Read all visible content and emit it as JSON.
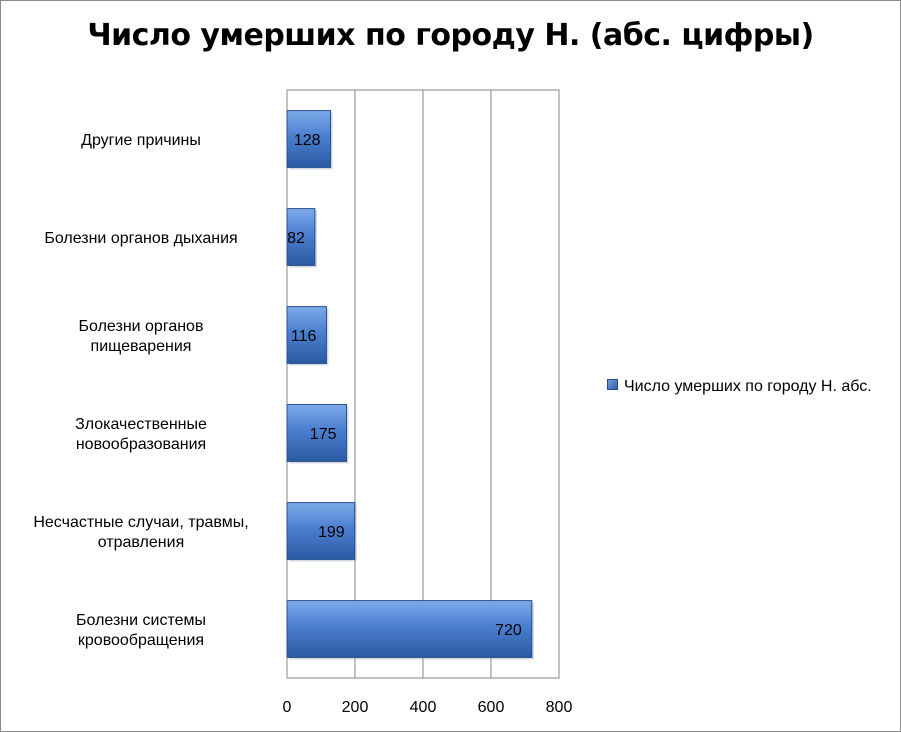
{
  "chart_data": {
    "type": "bar",
    "orientation": "horizontal",
    "title": "Число умерших по городу Н. (абс. цифры)",
    "categories": [
      [
        "Болезни системы",
        "кровообращения"
      ],
      [
        "Несчастные случаи, травмы,",
        "отравления"
      ],
      [
        "Злокачественные",
        "новообразования"
      ],
      [
        "Болезни органов",
        "пищеварения"
      ],
      [
        "Болезни органов дыхания"
      ],
      [
        "Другие причины"
      ]
    ],
    "series": [
      {
        "name": "Число умерших по городу Н. абс.",
        "values": [
          720,
          199,
          175,
          116,
          82,
          128
        ],
        "color": "#3b6fbf"
      }
    ],
    "xlim": [
      0,
      800
    ],
    "xticks": [
      0,
      200,
      400,
      600,
      800
    ],
    "grid": true,
    "legend": "right"
  },
  "legend": {
    "text": "Число умерших по городу Н. абс."
  }
}
